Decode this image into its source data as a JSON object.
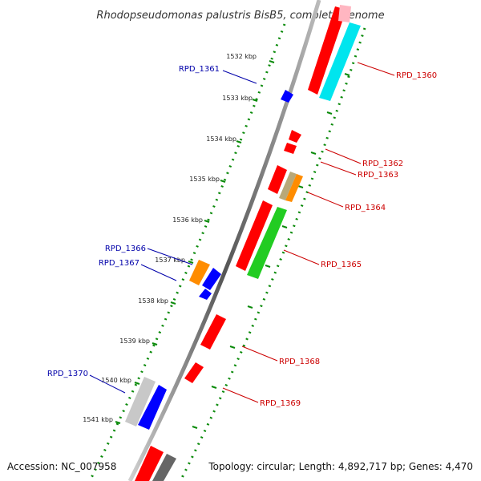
{
  "title": "Rhodopseudomonas palustris BisB5, complete genome",
  "accession": "Accession: NC_007958",
  "topology": "Topology: circular; Length: 4,892,717 bp; Genes: 4,470",
  "ticks": [
    "1532 kbp",
    "1533 kbp",
    "1534 kbp",
    "1535 kbp",
    "1536 kbp",
    "1537 kbp",
    "1538 kbp",
    "1539 kbp",
    "1540 kbp",
    "1541 kbp"
  ],
  "genes": [
    {
      "name": "RPD_1360",
      "color": "#ff0000",
      "strand": "forward"
    },
    {
      "name": "RPD_1361",
      "color": "#0000ff",
      "strand": "reverse"
    },
    {
      "name": "RPD_1362",
      "color": "#ff0000",
      "strand": "forward"
    },
    {
      "name": "RPD_1363",
      "color": "#ff0000",
      "strand": "forward"
    },
    {
      "name": "RPD_1364",
      "color": "#ff8c00",
      "strand": "forward"
    },
    {
      "name": "RPD_1365",
      "color": "#00cc00",
      "strand": "forward"
    },
    {
      "name": "RPD_1366",
      "color": "#ff8c00",
      "strand": "reverse"
    },
    {
      "name": "RPD_1367",
      "color": "#0000ff",
      "strand": "reverse"
    },
    {
      "name": "RPD_1368",
      "color": "#ff0000",
      "strand": "forward"
    },
    {
      "name": "RPD_1369",
      "color": "#ff0000",
      "strand": "forward"
    },
    {
      "name": "RPD_1370",
      "color": "#0000ff",
      "strand": "reverse"
    }
  ]
}
